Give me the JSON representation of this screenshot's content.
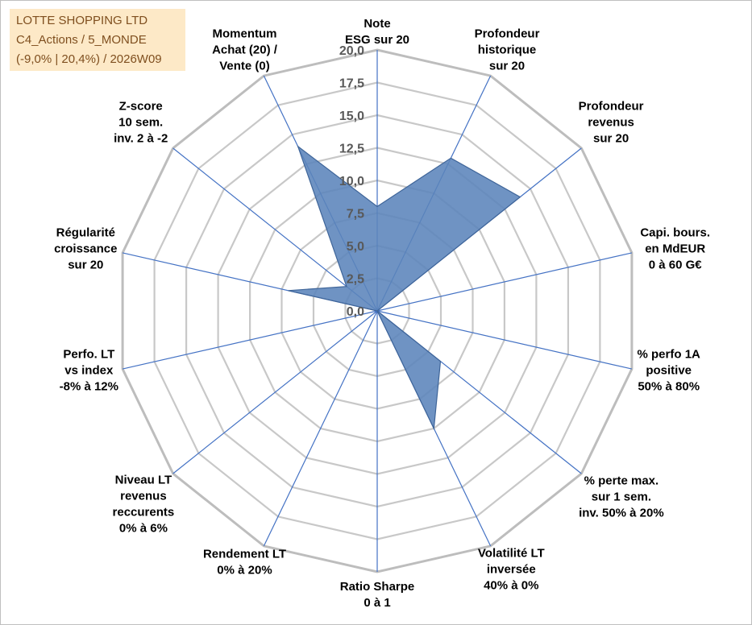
{
  "info_box": {
    "company": "LOTTE SHOPPING LTD",
    "category": "C4_Actions / 5_MONDE",
    "range_week": "(-9,0% | 20,4%) / 2026W09"
  },
  "colors": {
    "fill": "#5b84bb",
    "fill_stroke": "#3f6599",
    "spoke": "#4472c4",
    "ring": "#c8c8c8",
    "ring_outer": "#bdbdbd",
    "info_bg": "#fde9c7",
    "info_text": "#7f4f1f",
    "label_text": "#000000",
    "tick_text": "#595959"
  },
  "chart_data": {
    "type": "radar",
    "title": "",
    "r_range": [
      0,
      20
    ],
    "r_ticks": [
      "0,0",
      "2,5",
      "5,0",
      "7,5",
      "10,0",
      "12,5",
      "15,0",
      "17,5",
      "20,0"
    ],
    "grid": true,
    "axes": [
      {
        "label": [
          "Note",
          "ESG sur 20"
        ]
      },
      {
        "label": [
          "Profondeur",
          "historique",
          "sur 20"
        ]
      },
      {
        "label": [
          "Profondeur",
          "revenus",
          "sur 20"
        ]
      },
      {
        "label": [
          "Capi. bours.",
          "en MdEUR",
          "0 à 60 G€"
        ]
      },
      {
        "label": [
          "% perfo 1A",
          "positive",
          "50% à 80%"
        ]
      },
      {
        "label": [
          "% perte max.",
          "sur 1 sem.",
          "inv. 50% à 20%"
        ]
      },
      {
        "label": [
          "Volatilité LT",
          "inversée",
          "40% à 0%"
        ]
      },
      {
        "label": [
          "Ratio Sharpe",
          "0 à 1"
        ]
      },
      {
        "label": [
          "Rendement LT",
          "0% à 20%"
        ]
      },
      {
        "label": [
          "Niveau LT",
          "revenus",
          "reccurents",
          "0% à 6%"
        ]
      },
      {
        "label": [
          "Perfo. LT",
          "vs index",
          "-8% à 12%"
        ]
      },
      {
        "label": [
          "Régularité",
          "croissance",
          "sur 20"
        ]
      },
      {
        "label": [
          "Z-score",
          "10 sem.",
          "inv. 2 à -2"
        ]
      },
      {
        "label": [
          "Momentum",
          "Achat (20) /",
          "Vente (0)"
        ]
      }
    ],
    "series": [
      {
        "values": [
          8.0,
          13.0,
          14.0,
          0,
          0,
          6.2,
          10.0,
          0,
          0,
          0,
          0,
          7.0,
          3.0,
          14.0
        ]
      }
    ]
  }
}
